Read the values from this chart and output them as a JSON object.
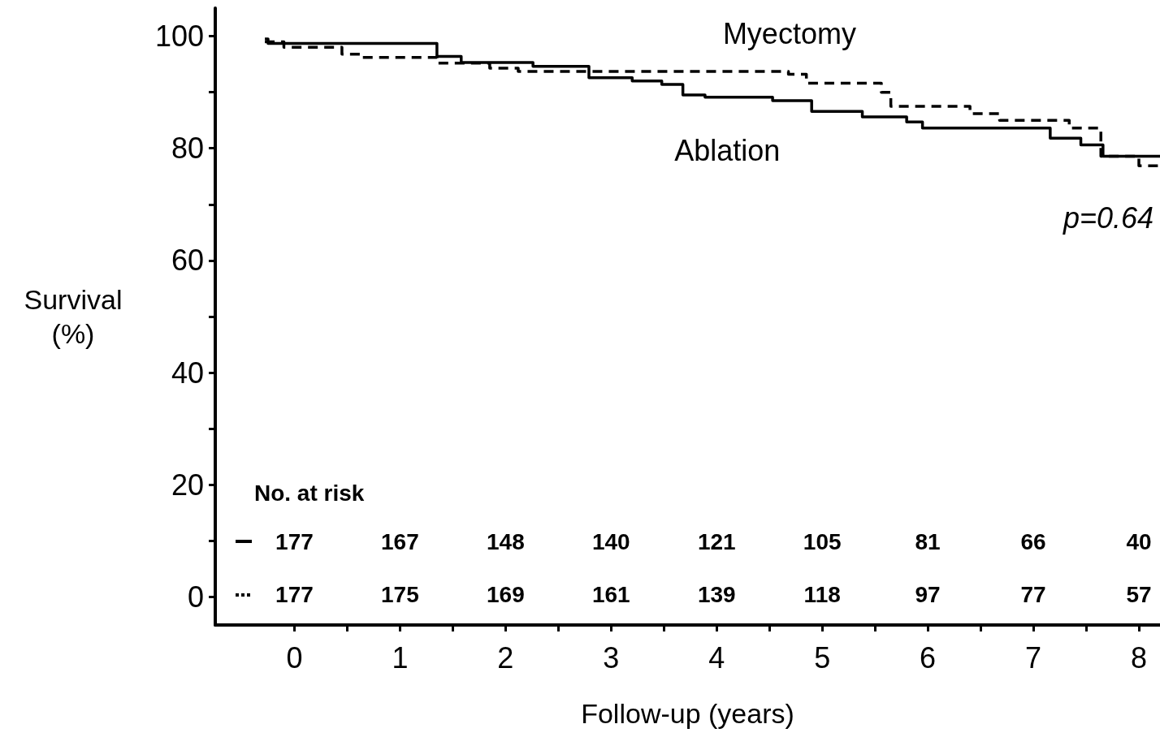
{
  "chart_data": {
    "type": "step",
    "xlabel": "Follow-up (years)",
    "ylabel": "Survival (%)",
    "xlim": [
      -0.75,
      8.2
    ],
    "ylim": [
      -5,
      105
    ],
    "xticks": [
      0,
      {
        "value": 0.5,
        "label": null
      },
      1,
      {
        "value": 1.5,
        "label": null
      },
      2,
      {
        "value": 2.5,
        "label": null
      },
      3,
      {
        "value": 3.5,
        "label": null
      },
      4,
      {
        "value": 4.5,
        "label": null
      },
      5,
      {
        "value": 5.5,
        "label": null
      },
      6,
      {
        "value": 6.5,
        "label": null
      },
      7,
      {
        "value": 7.5,
        "label": null
      },
      8
    ],
    "yticks": [
      0,
      {
        "value": 10,
        "label": null
      },
      20,
      {
        "value": 30,
        "label": null
      },
      40,
      {
        "value": 50,
        "label": null
      },
      60,
      {
        "value": 70,
        "label": null
      },
      80,
      {
        "value": 90,
        "label": null
      },
      100
    ],
    "grid": false,
    "marker": "none",
    "series": [
      {
        "name": "Myectomy",
        "color": "#000000",
        "line_style": "dashed",
        "x": [
          -0.28,
          -0.1,
          0.45,
          0.64,
          1.35,
          1.85,
          2.12,
          4.68,
          4.85,
          5.56,
          5.65,
          6.4,
          6.68,
          7.34,
          7.64,
          8.0,
          8.2
        ],
        "values": [
          99.0,
          98.0,
          96.8,
          96.2,
          95.2,
          94.3,
          93.7,
          93.2,
          91.6,
          90.0,
          87.5,
          86.2,
          85.0,
          83.6,
          78.6,
          76.9,
          76.9
        ]
      },
      {
        "name": "Ablation",
        "color": "#000000",
        "line_style": "solid",
        "x": [
          -0.28,
          -0.25,
          1.35,
          1.58,
          2.26,
          2.79,
          3.2,
          3.48,
          3.68,
          3.89,
          4.53,
          4.9,
          5.38,
          5.8,
          5.95,
          7.16,
          7.45,
          7.66,
          8.2
        ],
        "values": [
          99.5,
          98.7,
          96.4,
          95.3,
          94.6,
          92.6,
          92.0,
          91.4,
          89.5,
          89.1,
          88.5,
          86.6,
          85.6,
          84.7,
          83.6,
          81.8,
          80.6,
          78.6,
          78.6
        ]
      }
    ],
    "annotations": [
      "p=0.64",
      "No. at risk",
      "177",
      "167",
      "148",
      "140",
      "121",
      "105",
      "81",
      "66",
      "40",
      "177",
      "175",
      "169",
      "161",
      "139",
      "118",
      "97",
      "77",
      "57"
    ]
  }
}
